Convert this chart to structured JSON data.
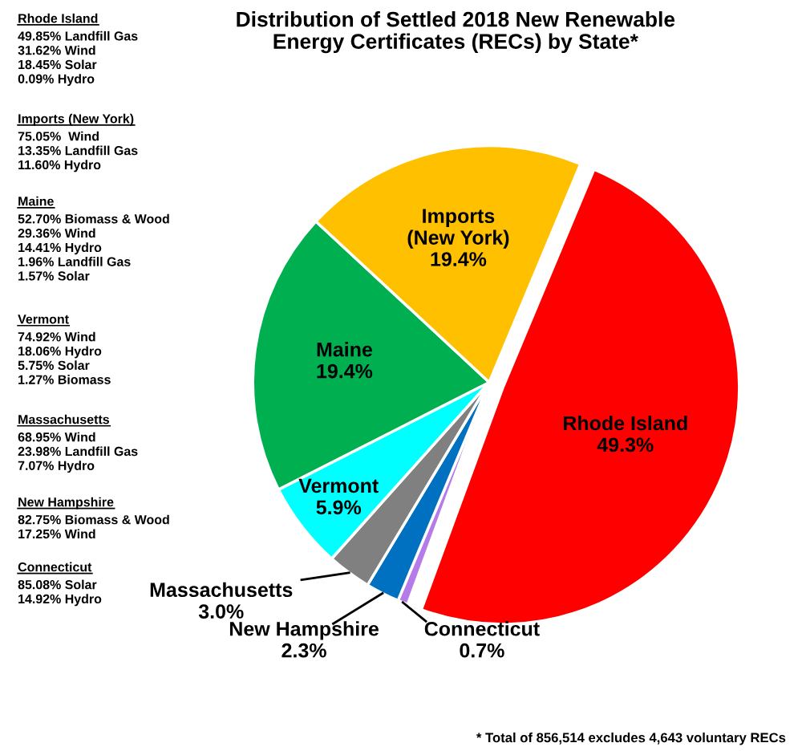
{
  "chart_data": {
    "type": "pie",
    "title": "Distribution of Settled 2018 New Renewable\nEnergy Certificates (RECs) by State*",
    "categories": [
      "Rhode Island",
      "Connecticut",
      "New Hampshire",
      "Massachusetts",
      "Vermont",
      "Maine",
      "Imports\n(New York)"
    ],
    "values": [
      49.3,
      0.7,
      2.3,
      3.0,
      5.9,
      19.4,
      19.4
    ],
    "colors": [
      "#ff0000",
      "#b57be8",
      "#0070c0",
      "#808080",
      "#00ffff",
      "#00b050",
      "#ffc000"
    ],
    "value_labels": [
      "49.3%",
      "0.7%",
      "2.3%",
      "3.0%",
      "5.9%",
      "19.4%",
      "19.4%"
    ],
    "legend": false,
    "annotations": [
      "Rhode Island\n49.85% Landfill Gas\n31.62% Wind\n18.45% Solar\n0.09% Hydro",
      "Imports (New York)\n75.05%  Wind\n13.35% Landfill Gas\n11.60% Hydro",
      "Maine\n52.70% Biomass & Wood\n29.36% Wind\n14.41% Hydro\n1.96% Landfill Gas\n1.57% Solar",
      "Vermont\n74.92% Wind\n18.06% Hydro\n5.75% Solar\n1.27% Biomass",
      "Massachusetts\n68.95% Wind\n23.98% Landfill Gas\n7.07% Hydro",
      "New Hampshire\n82.75% Biomass & Wood\n17.25% Wind",
      "Connecticut\n85.08% Solar\n14.92% Hydro",
      "* Total of 856,514 excludes 4,643 voluntary RECs"
    ]
  }
}
